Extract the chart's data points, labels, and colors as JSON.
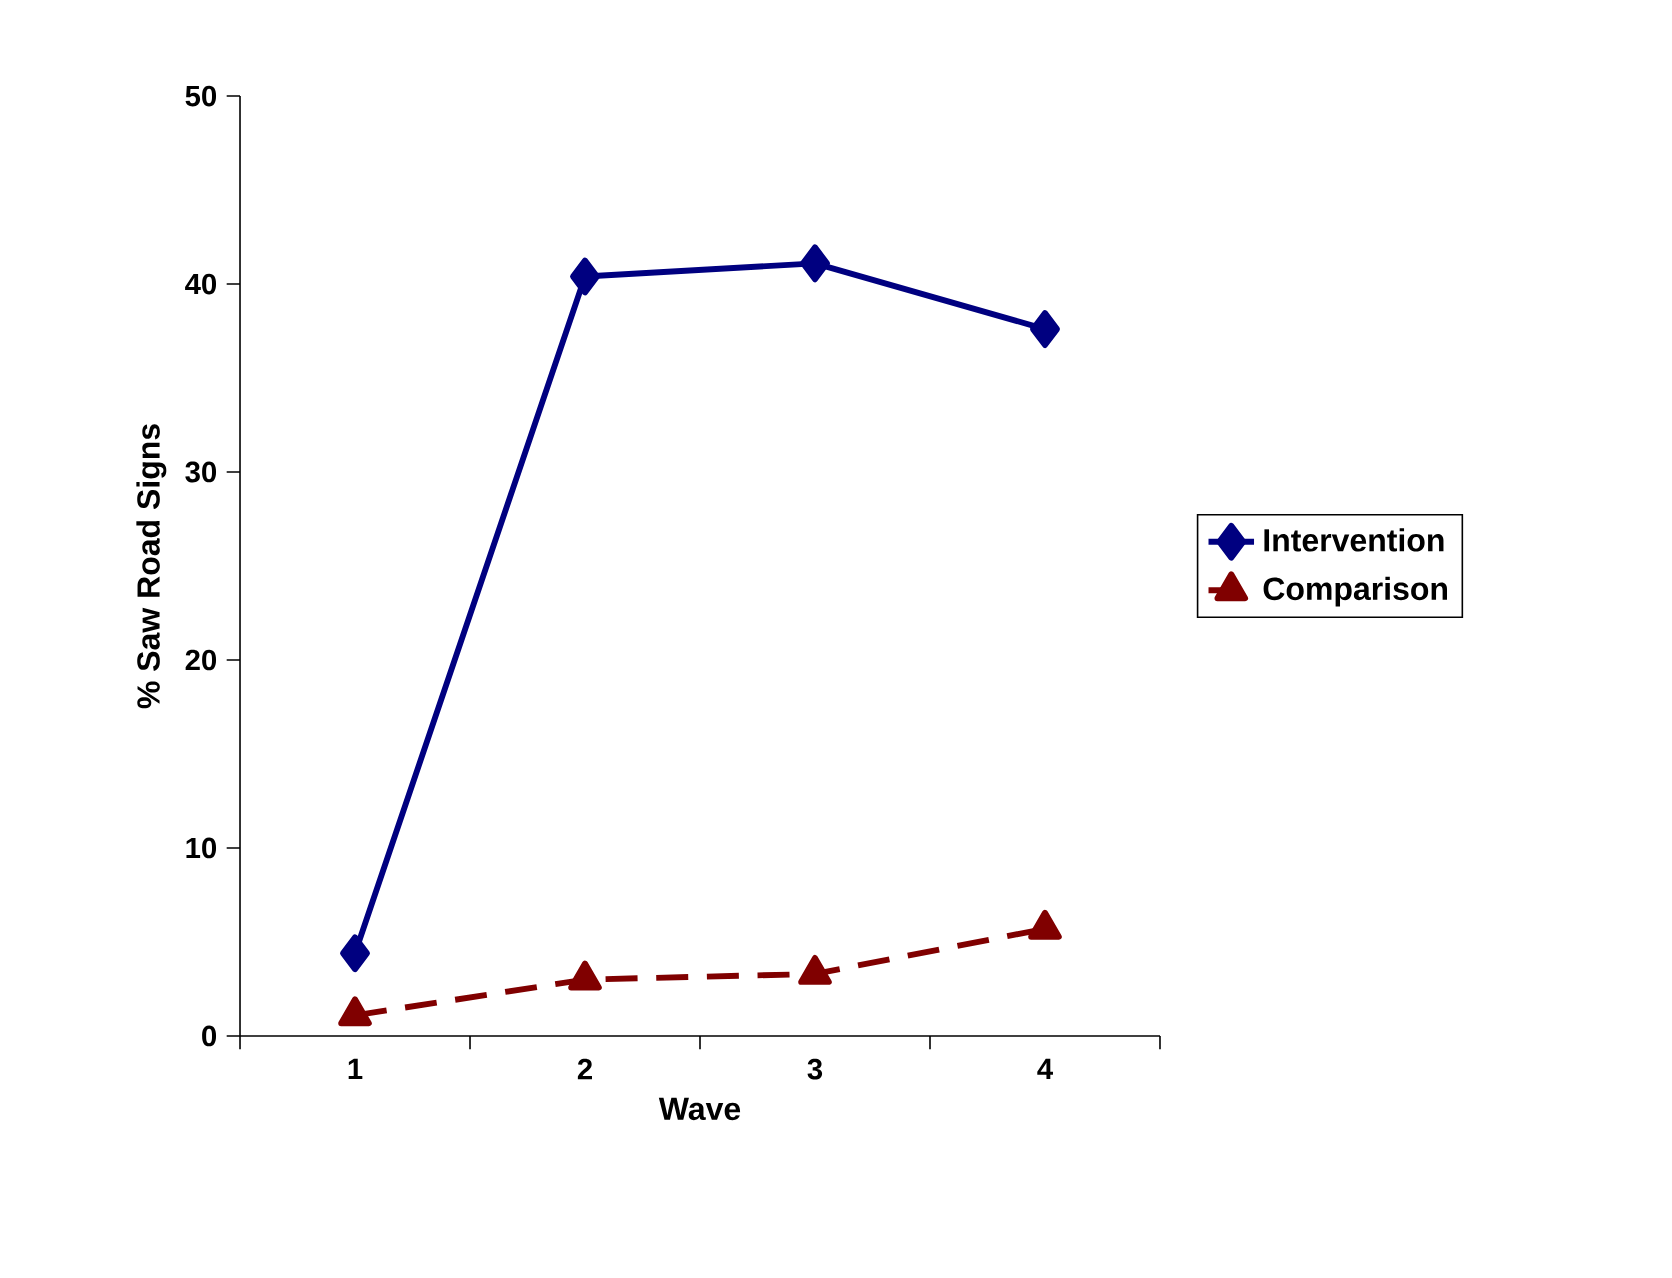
{
  "chart_data": {
    "type": "line",
    "xlabel": "Wave",
    "ylabel": "% Saw Road Signs",
    "categories": [
      "1",
      "2",
      "3",
      "4"
    ],
    "series": [
      {
        "name": "Intervention",
        "color": "#000080",
        "marker": "diamond",
        "line_style": "solid",
        "values": [
          4.4,
          40.4,
          41.1,
          37.6
        ]
      },
      {
        "name": "Comparison",
        "color": "#800000",
        "marker": "triangle",
        "line_style": "dashed",
        "values": [
          1.1,
          3.0,
          3.3,
          5.7
        ]
      }
    ],
    "ylim": [
      0,
      50
    ],
    "yticks": [
      0,
      10,
      20,
      30,
      40,
      50
    ],
    "grid": false,
    "legend": "right"
  }
}
